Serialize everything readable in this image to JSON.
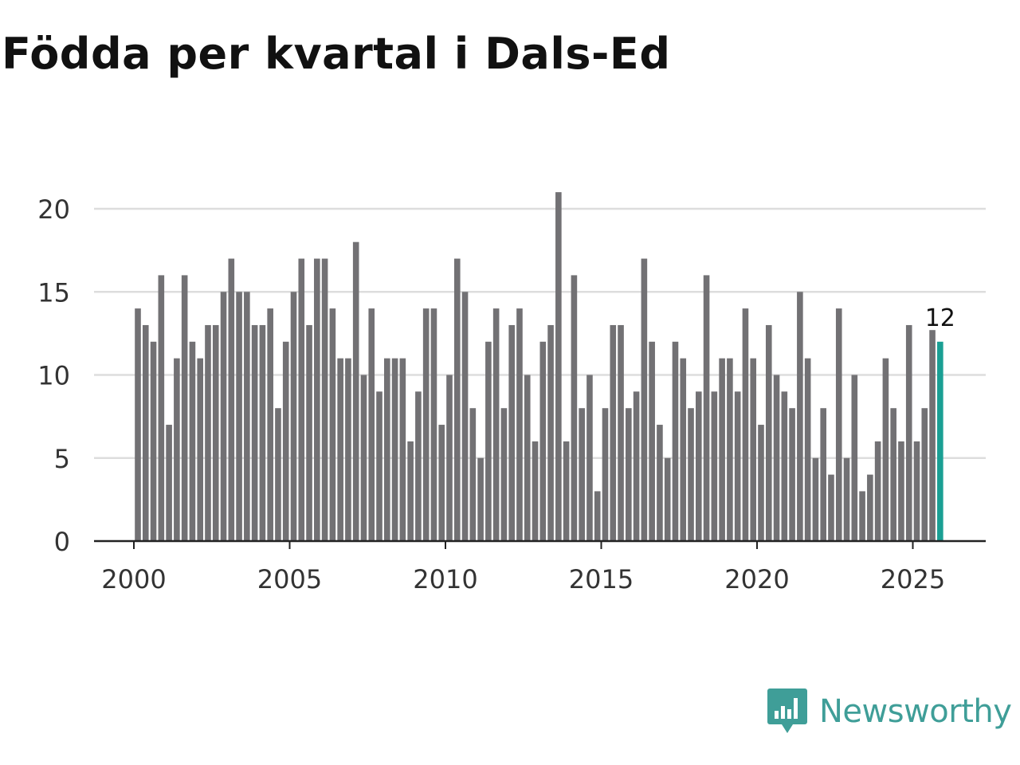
{
  "title": "Födda per kvartal i Dals-Ed",
  "logo": {
    "text": "Newsworthy",
    "icon": "newsworthy-chart-icon",
    "color": "#3f9e98"
  },
  "colors": {
    "bar": "#727174",
    "highlight": "#1a9f94",
    "grid": "#dddddd",
    "axis": "#222222",
    "tick_text": "#333333"
  },
  "chart_data": {
    "type": "bar",
    "title": "Födda per kvartal i Dals-Ed",
    "xlabel": "",
    "ylabel": "",
    "x_start": 2000.0,
    "x_step": 0.25,
    "xlim": [
      1999.25,
      2027.25
    ],
    "ylim": [
      0,
      22
    ],
    "y_ticks": [
      0,
      5,
      10,
      15,
      20
    ],
    "x_ticks": [
      2000,
      2005,
      2010,
      2015,
      2020,
      2025
    ],
    "values": [
      14,
      13,
      12,
      16,
      7,
      11,
      16,
      12,
      11,
      13,
      13,
      15,
      17,
      15,
      15,
      13,
      13,
      14,
      8,
      12,
      15,
      17,
      13,
      17,
      17,
      14,
      11,
      11,
      18,
      10,
      14,
      9,
      11,
      11,
      11,
      6,
      9,
      14,
      14,
      7,
      10,
      17,
      15,
      8,
      5,
      12,
      14,
      8,
      13,
      14,
      10,
      6,
      12,
      13,
      21,
      6,
      16,
      8,
      10,
      3,
      8,
      13,
      13,
      8,
      9,
      17,
      12,
      7,
      5,
      12,
      11,
      8,
      9,
      16,
      9,
      11,
      11,
      9,
      14,
      11,
      7,
      13,
      10,
      9,
      8,
      15,
      11,
      5,
      8,
      4,
      14,
      5,
      10,
      3,
      4,
      6,
      11,
      8,
      6,
      13,
      6,
      8,
      12.7,
      12
    ],
    "highlight_index": 103,
    "last_value_label": "12",
    "grid": true
  }
}
